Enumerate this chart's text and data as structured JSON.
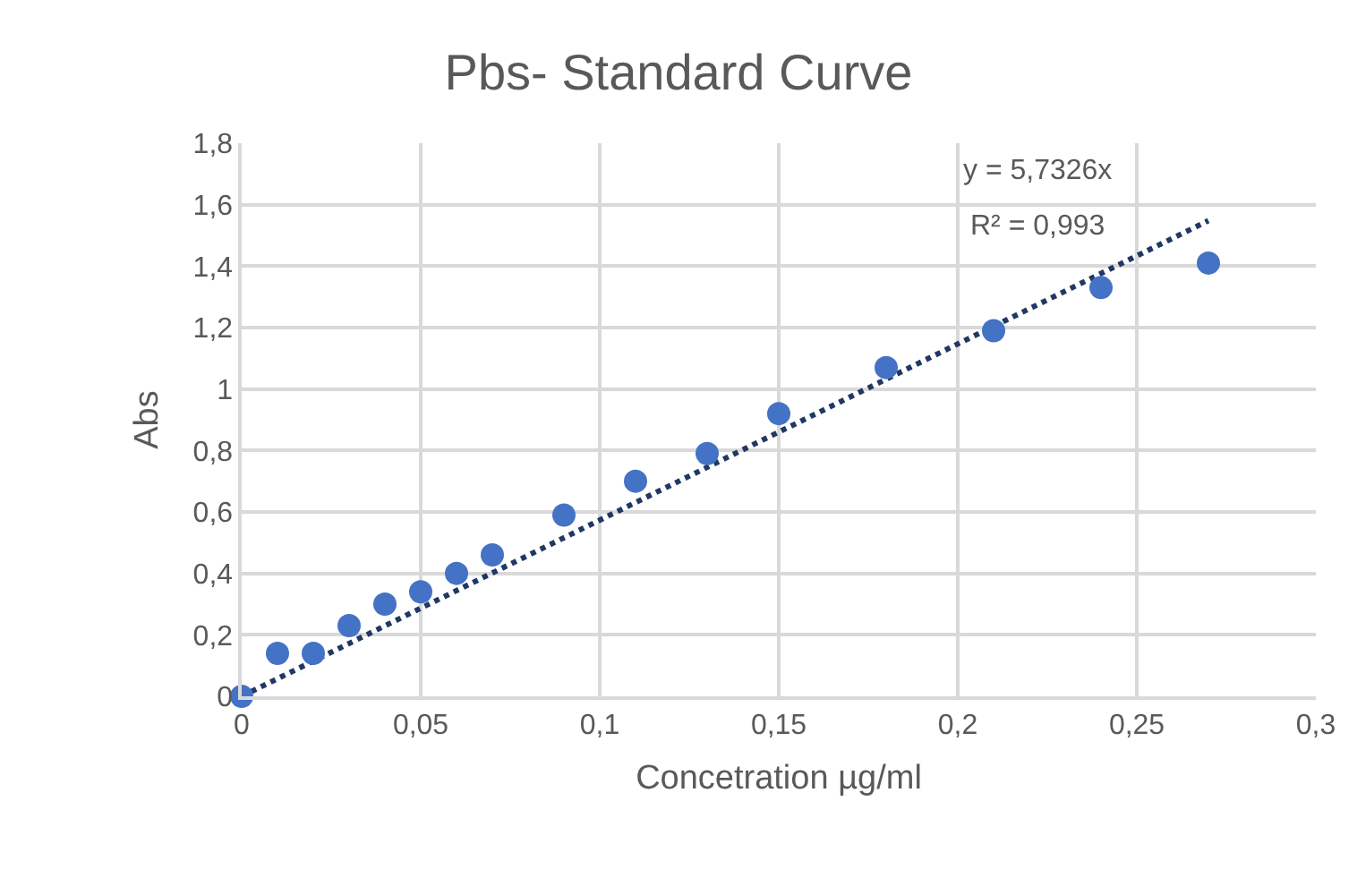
{
  "chart_data": {
    "type": "scatter",
    "title": "Pbs- Standard Curve",
    "xlabel": "Concetration µg/ml",
    "ylabel": "Abs",
    "annotations": [
      "y = 5,7326x",
      "R² = 0,993"
    ],
    "series": [
      {
        "color": "#4472c4",
        "marker": "circle",
        "x": [
          0,
          0.01,
          0.02,
          0.03,
          0.04,
          0.05,
          0.06,
          0.07,
          0.09,
          0.11,
          0.13,
          0.15,
          0.18,
          0.21,
          0.24,
          0.27
        ],
        "values": [
          0,
          0.14,
          0.14,
          0.23,
          0.3,
          0.34,
          0.4,
          0.46,
          0.59,
          0.7,
          0.79,
          0.92,
          1.07,
          1.19,
          1.33,
          1.41
        ]
      },
      {
        "type": "line",
        "color": "#203864",
        "line_style": "dotted",
        "marker": "none",
        "x": [
          0,
          0.27
        ],
        "values": [
          0,
          1.548
        ]
      }
    ],
    "xlim": [
      0,
      0.3
    ],
    "ylim": [
      0,
      1.8
    ],
    "xticks": [
      0,
      {
        "value": 0.05,
        "label": "0,05"
      },
      {
        "value": 0.1,
        "label": "0,1"
      },
      {
        "value": 0.15,
        "label": "0,15"
      },
      {
        "value": 0.2,
        "label": "0,2"
      },
      {
        "value": 0.25,
        "label": "0,25"
      },
      {
        "value": 0.3,
        "label": "0,3"
      }
    ],
    "yticks": [
      0,
      {
        "value": 0.2,
        "label": "0,2"
      },
      {
        "value": 0.4,
        "label": "0,4"
      },
      {
        "value": 0.6,
        "label": "0,6"
      },
      {
        "value": 0.8,
        "label": "0,8"
      },
      1,
      {
        "value": 1.2,
        "label": "1,2"
      },
      {
        "value": 1.4,
        "label": "1,4"
      },
      {
        "value": 1.6,
        "label": "1,6"
      },
      {
        "value": 1.8,
        "label": "1,8"
      }
    ],
    "grid": true
  }
}
